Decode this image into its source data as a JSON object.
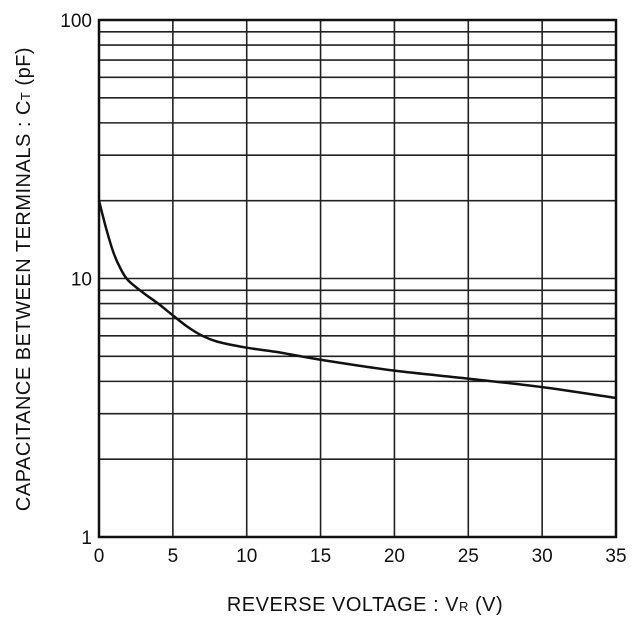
{
  "chart_data": {
    "type": "line",
    "title": "",
    "xlabel": {
      "main": "REVERSE  VOLTAGE : V",
      "sub": "R",
      "unit": " (V)"
    },
    "ylabel": {
      "main": "CAPACITANCE  BETWEEN  TERMINALS : C",
      "sub": "T",
      "unit": " (pF)"
    },
    "xlim": [
      0,
      35
    ],
    "ylim": [
      1,
      100
    ],
    "yscale": "log",
    "grid": true,
    "x_ticks": [
      0,
      5,
      10,
      15,
      20,
      25,
      30,
      35
    ],
    "x_tick_labels": [
      "0",
      "5",
      "10",
      "15",
      "20",
      "25",
      "30",
      "35"
    ],
    "y_ticks": [
      1,
      10,
      100
    ],
    "y_tick_labels": [
      "1",
      "10",
      "100"
    ],
    "series": [
      {
        "color": "#111111",
        "x": [
          0,
          0.5,
          1,
          1.5,
          2,
          3,
          4,
          5,
          6,
          7,
          8,
          10,
          12,
          15,
          20,
          25,
          30,
          35
        ],
        "y": [
          20,
          15.5,
          12.5,
          10.8,
          9.8,
          8.8,
          8.0,
          7.2,
          6.5,
          6.0,
          5.7,
          5.4,
          5.2,
          4.85,
          4.4,
          4.1,
          3.8,
          3.45
        ]
      }
    ]
  }
}
